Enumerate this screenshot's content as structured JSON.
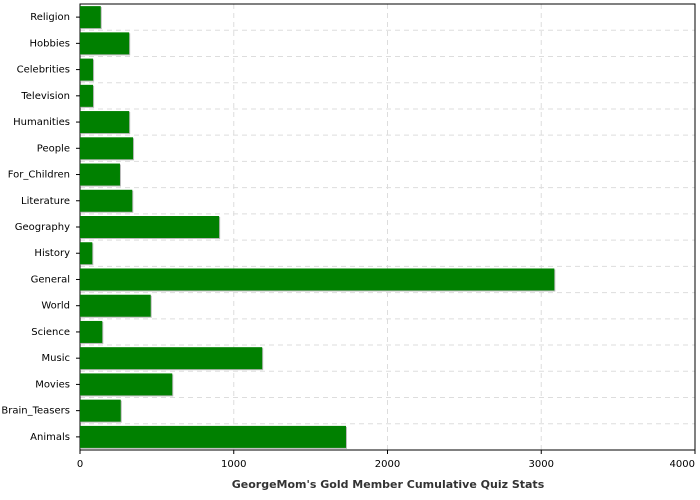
{
  "chart_data": {
    "type": "bar",
    "orientation": "horizontal",
    "x_label": "GeorgeMom's Gold Member Cumulative Quiz Stats",
    "categories": [
      "Religion",
      "Hobbies",
      "Celebrities",
      "Television",
      "Humanities",
      "People",
      "For_Children",
      "Literature",
      "Geography",
      "History",
      "General",
      "World",
      "Science",
      "Music",
      "Movies",
      "Brain_Teasers",
      "Animals"
    ],
    "values": [
      135,
      320,
      85,
      85,
      320,
      345,
      260,
      340,
      905,
      80,
      3085,
      460,
      145,
      1185,
      600,
      265,
      1730
    ],
    "color": "#008000",
    "xlim": [
      0,
      4000
    ],
    "xticks": [
      0,
      1000,
      2000,
      3000,
      4000
    ],
    "grid": true
  }
}
